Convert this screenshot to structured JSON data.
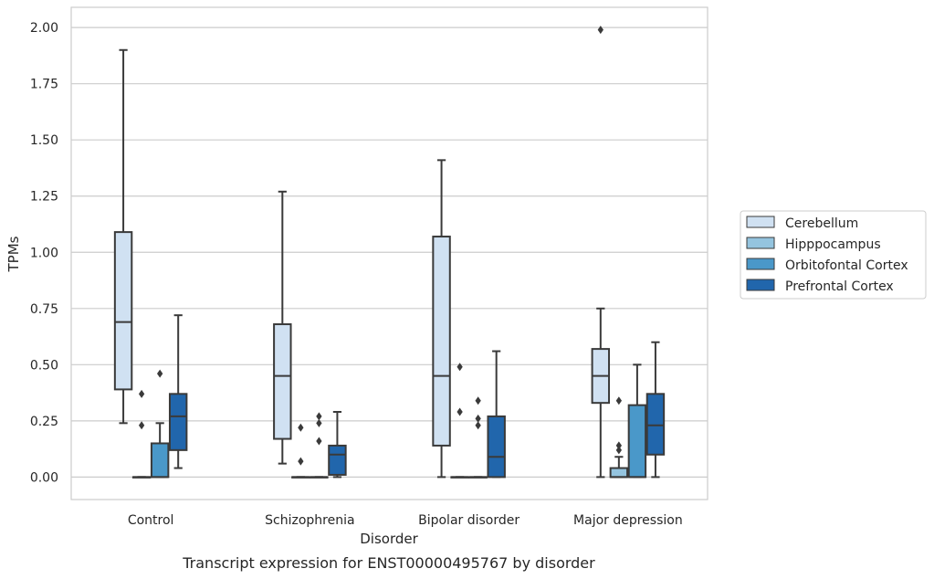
{
  "chart_data": {
    "type": "box",
    "title": "",
    "caption": "Transcript expression for ENST00000495767 by disorder",
    "xlabel": "Disorder",
    "ylabel": "TPMs",
    "ylim": [
      -0.1,
      2.09
    ],
    "yticks": [
      "0.00",
      "0.25",
      "0.50",
      "0.75",
      "1.00",
      "1.25",
      "1.50",
      "1.75",
      "2.00"
    ],
    "grid": "horizontal",
    "legend_position": "right",
    "categories": [
      "Control",
      "Schizophrenia",
      "Bipolar disorder",
      "Major depression"
    ],
    "series": [
      {
        "name": "Cerebellum",
        "color": "#d0e1f2",
        "boxes": [
          {
            "q1": 0.39,
            "median": 0.69,
            "q3": 1.09,
            "whislo": 0.24,
            "whishi": 1.9,
            "fliers": []
          },
          {
            "q1": 0.17,
            "median": 0.45,
            "q3": 0.68,
            "whislo": 0.06,
            "whishi": 1.27,
            "fliers": []
          },
          {
            "q1": 0.14,
            "median": 0.45,
            "q3": 1.07,
            "whislo": 0.0,
            "whishi": 1.41,
            "fliers": []
          },
          {
            "q1": 0.33,
            "median": 0.45,
            "q3": 0.57,
            "whislo": 0.0,
            "whishi": 0.75,
            "fliers": [
              1.99
            ]
          }
        ]
      },
      {
        "name": "Hipppocampus",
        "color": "#94c4df",
        "boxes": [
          {
            "q1": 0.0,
            "median": 0.0,
            "q3": 0.0,
            "whislo": 0.0,
            "whishi": 0.0,
            "fliers": [
              0.23,
              0.37
            ]
          },
          {
            "q1": 0.0,
            "median": 0.0,
            "q3": 0.0,
            "whislo": 0.0,
            "whishi": 0.0,
            "fliers": [
              0.07,
              0.22
            ]
          },
          {
            "q1": 0.0,
            "median": 0.0,
            "q3": 0.0,
            "whislo": 0.0,
            "whishi": 0.0,
            "fliers": [
              0.29,
              0.49
            ]
          },
          {
            "q1": 0.0,
            "median": 0.0,
            "q3": 0.04,
            "whislo": 0.0,
            "whishi": 0.09,
            "fliers": [
              0.12,
              0.14,
              0.34
            ]
          }
        ]
      },
      {
        "name": "Orbitofontal Cortex",
        "color": "#4a98c9",
        "boxes": [
          {
            "q1": 0.0,
            "median": 0.0,
            "q3": 0.15,
            "whislo": 0.0,
            "whishi": 0.24,
            "fliers": [
              0.46
            ]
          },
          {
            "q1": 0.0,
            "median": 0.0,
            "q3": 0.0,
            "whislo": 0.0,
            "whishi": 0.0,
            "fliers": [
              0.16,
              0.24,
              0.27
            ]
          },
          {
            "q1": 0.0,
            "median": 0.0,
            "q3": 0.0,
            "whislo": 0.0,
            "whishi": 0.0,
            "fliers": [
              0.23,
              0.26,
              0.34
            ]
          },
          {
            "q1": 0.0,
            "median": 0.0,
            "q3": 0.32,
            "whislo": 0.0,
            "whishi": 0.5,
            "fliers": []
          }
        ]
      },
      {
        "name": "Prefrontal Cortex",
        "color": "#2166ac",
        "boxes": [
          {
            "q1": 0.12,
            "median": 0.27,
            "q3": 0.37,
            "whislo": 0.04,
            "whishi": 0.72,
            "fliers": []
          },
          {
            "q1": 0.01,
            "median": 0.1,
            "q3": 0.14,
            "whislo": 0.0,
            "whishi": 0.29,
            "fliers": []
          },
          {
            "q1": 0.0,
            "median": 0.09,
            "q3": 0.27,
            "whislo": 0.0,
            "whishi": 0.56,
            "fliers": []
          },
          {
            "q1": 0.1,
            "median": 0.23,
            "q3": 0.37,
            "whislo": 0.0,
            "whishi": 0.6,
            "fliers": []
          }
        ]
      }
    ]
  }
}
